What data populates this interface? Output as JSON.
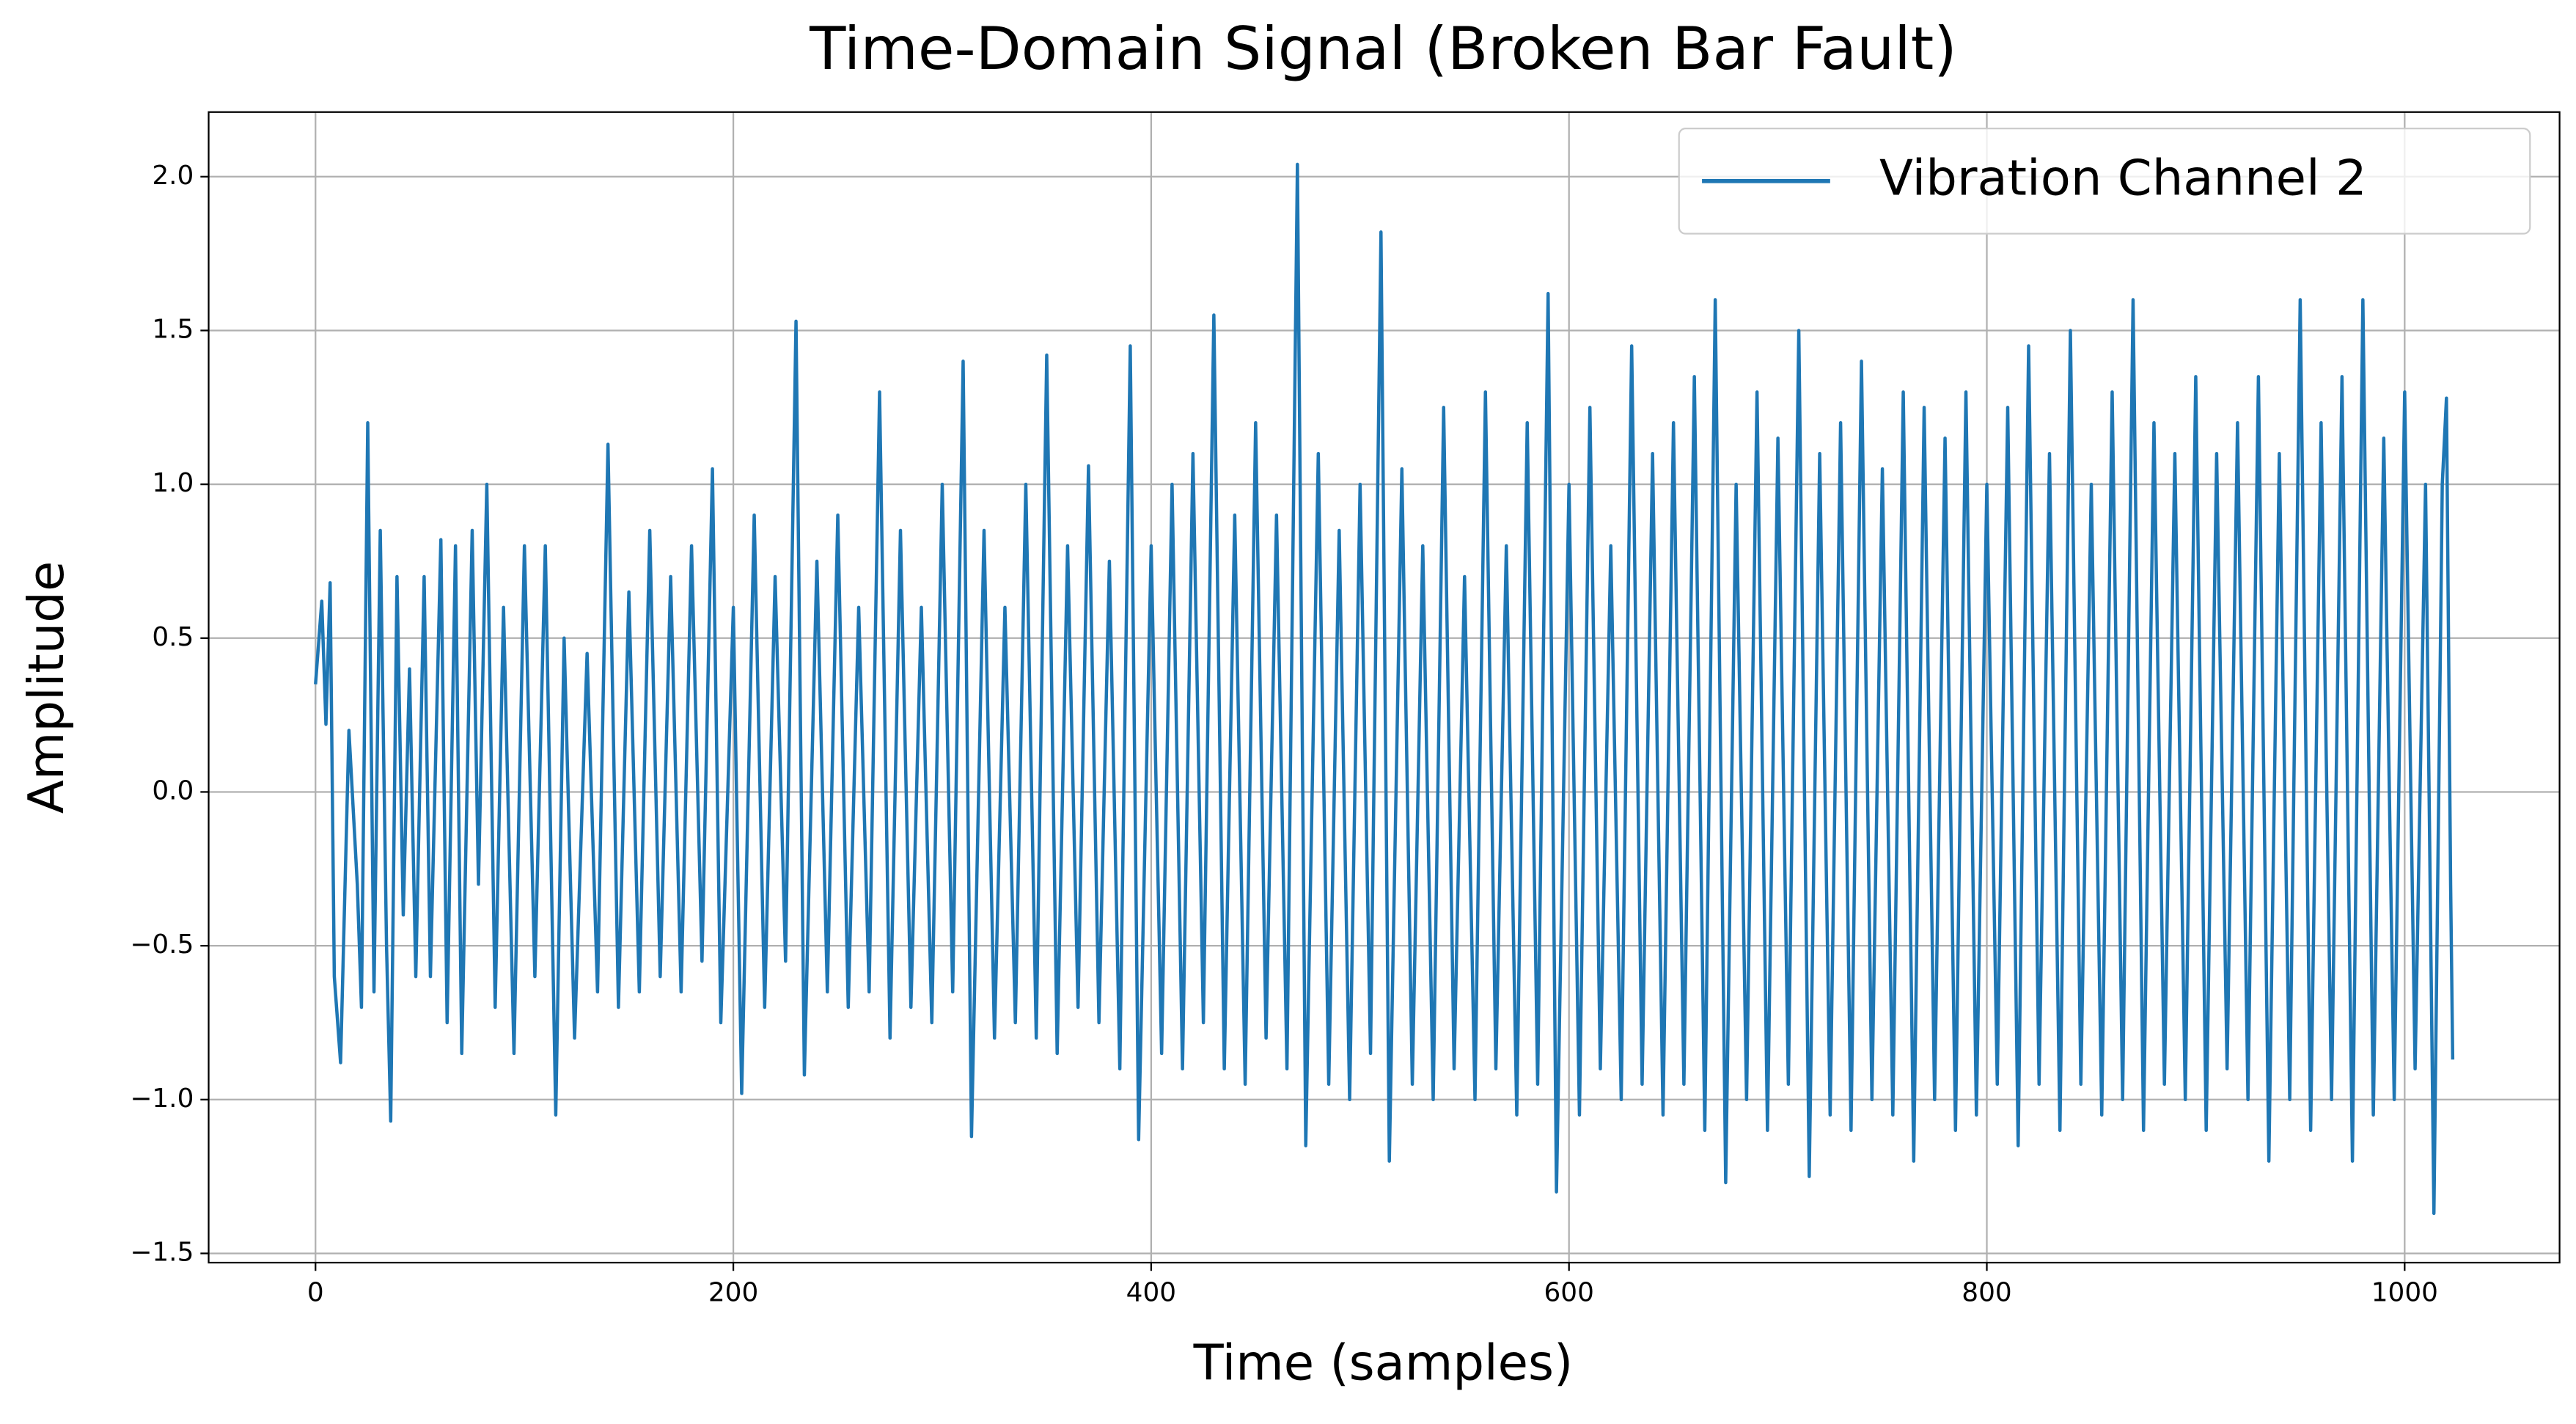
{
  "chart_data": {
    "type": "line",
    "title": "Time-Domain Signal (Broken Bar Fault)",
    "x_label": "Time (samples)",
    "y_label": "Amplitude",
    "legend": "upper right",
    "grid": true,
    "xlim": [
      -51.15,
      1074.15
    ],
    "ylim": [
      -1.53,
      2.21
    ],
    "xticks": [
      0,
      200,
      400,
      600,
      800,
      1000
    ],
    "yticks": [
      {
        "value": -1.5,
        "label": "−1.5"
      },
      {
        "value": -1.0,
        "label": "−1.0"
      },
      {
        "value": -0.5,
        "label": "−0.5"
      },
      {
        "value": 0,
        "label": "0.0"
      },
      0.5,
      {
        "value": 1.0,
        "label": "1.0"
      },
      1.5,
      {
        "value": 2.0,
        "label": "2.0"
      }
    ],
    "x": [
      0,
      3,
      5,
      7,
      9,
      12,
      16,
      20,
      22,
      25,
      28,
      31,
      34,
      36,
      39,
      42,
      45,
      48,
      52,
      55,
      60,
      63,
      67,
      70,
      75,
      78,
      82,
      86,
      90,
      95,
      100,
      105,
      110,
      115,
      119,
      124,
      130,
      135,
      140,
      145,
      150,
      155,
      160,
      165,
      170,
      175,
      180,
      185,
      190,
      194,
      200,
      204,
      210,
      215,
      220,
      225,
      230,
      234,
      240,
      245,
      250,
      255,
      260,
      265,
      270,
      275,
      280,
      285,
      290,
      295,
      300,
      305,
      310,
      314,
      320,
      325,
      330,
      335,
      340,
      345,
      350,
      355,
      360,
      365,
      370,
      375,
      380,
      385,
      390,
      394,
      400,
      405,
      410,
      415,
      420,
      425,
      430,
      435,
      440,
      445,
      450,
      455,
      460,
      465,
      470,
      474,
      480,
      485,
      490,
      495,
      500,
      505,
      510,
      514,
      520,
      525,
      530,
      535,
      540,
      545,
      550,
      555,
      560,
      565,
      570,
      575,
      580,
      585,
      590,
      594,
      600,
      605,
      610,
      615,
      620,
      625,
      630,
      635,
      640,
      645,
      650,
      655,
      660,
      665,
      670,
      675,
      680,
      685,
      690,
      695,
      700,
      705,
      710,
      715,
      720,
      725,
      730,
      735,
      740,
      745,
      750,
      755,
      760,
      765,
      770,
      775,
      780,
      785,
      790,
      795,
      800,
      805,
      810,
      815,
      820,
      825,
      830,
      835,
      840,
      845,
      850,
      855,
      860,
      865,
      870,
      875,
      880,
      885,
      890,
      895,
      900,
      905,
      910,
      915,
      920,
      925,
      930,
      935,
      940,
      945,
      950,
      955,
      960,
      965,
      970,
      975,
      980,
      985,
      990,
      995,
      1000,
      1005,
      1010,
      1014,
      1018,
      1020,
      1022,
      1023
    ],
    "series": [
      {
        "name": "Vibration Channel 2",
        "color": "#1f77b4",
        "values": [
          0.35,
          0.62,
          0.22,
          0.68,
          -0.6,
          -0.88,
          0.2,
          -0.3,
          -0.7,
          1.2,
          -0.65,
          0.85,
          -0.5,
          -1.07,
          0.7,
          -0.4,
          0.4,
          -0.6,
          0.7,
          -0.6,
          0.82,
          -0.75,
          0.8,
          -0.85,
          0.85,
          -0.3,
          1.0,
          -0.7,
          0.6,
          -0.85,
          0.8,
          -0.6,
          0.8,
          -1.05,
          0.5,
          -0.8,
          0.45,
          -0.65,
          1.13,
          -0.7,
          0.65,
          -0.65,
          0.85,
          -0.6,
          0.7,
          -0.65,
          0.8,
          -0.55,
          1.05,
          -0.75,
          0.6,
          -0.98,
          0.9,
          -0.7,
          0.7,
          -0.55,
          1.53,
          -0.92,
          0.75,
          -0.65,
          0.9,
          -0.7,
          0.6,
          -0.65,
          1.3,
          -0.8,
          0.85,
          -0.7,
          0.6,
          -0.75,
          1.0,
          -0.65,
          1.4,
          -1.12,
          0.85,
          -0.8,
          0.6,
          -0.75,
          1.0,
          -0.8,
          1.42,
          -0.85,
          0.8,
          -0.7,
          1.06,
          -0.75,
          0.75,
          -0.9,
          1.45,
          -1.13,
          0.8,
          -0.85,
          1.0,
          -0.9,
          1.1,
          -0.75,
          1.55,
          -0.9,
          0.9,
          -0.95,
          1.2,
          -0.8,
          0.9,
          -0.9,
          2.04,
          -1.15,
          1.1,
          -0.95,
          0.85,
          -1.0,
          1.0,
          -0.85,
          1.82,
          -1.2,
          1.05,
          -0.95,
          0.8,
          -1.0,
          1.25,
          -0.9,
          0.7,
          -1.0,
          1.3,
          -0.9,
          0.8,
          -1.05,
          1.2,
          -0.95,
          1.62,
          -1.3,
          1.0,
          -1.05,
          1.25,
          -0.9,
          0.8,
          -1.0,
          1.45,
          -0.95,
          1.1,
          -1.05,
          1.2,
          -0.95,
          1.35,
          -1.1,
          1.6,
          -1.27,
          1.0,
          -1.0,
          1.3,
          -1.1,
          1.15,
          -0.95,
          1.5,
          -1.25,
          1.1,
          -1.05,
          1.2,
          -1.1,
          1.4,
          -1.0,
          1.05,
          -1.05,
          1.3,
          -1.2,
          1.25,
          -1.0,
          1.15,
          -1.1,
          1.3,
          -1.05,
          1.0,
          -0.95,
          1.25,
          -1.15,
          1.45,
          -0.95,
          1.1,
          -1.1,
          1.5,
          -0.95,
          1.0,
          -1.05,
          1.3,
          -1.0,
          1.6,
          -1.1,
          1.2,
          -0.95,
          1.1,
          -1.0,
          1.35,
          -1.1,
          1.1,
          -0.9,
          1.2,
          -1.0,
          1.35,
          -1.2,
          1.1,
          -1.0,
          1.6,
          -1.1,
          1.2,
          -1.0,
          1.35,
          -1.2,
          1.6,
          -1.05,
          1.15,
          -1.0,
          1.3,
          -0.9,
          1.0,
          -1.37,
          1.0,
          1.28,
          -0.3,
          -0.87
        ]
      }
    ]
  }
}
